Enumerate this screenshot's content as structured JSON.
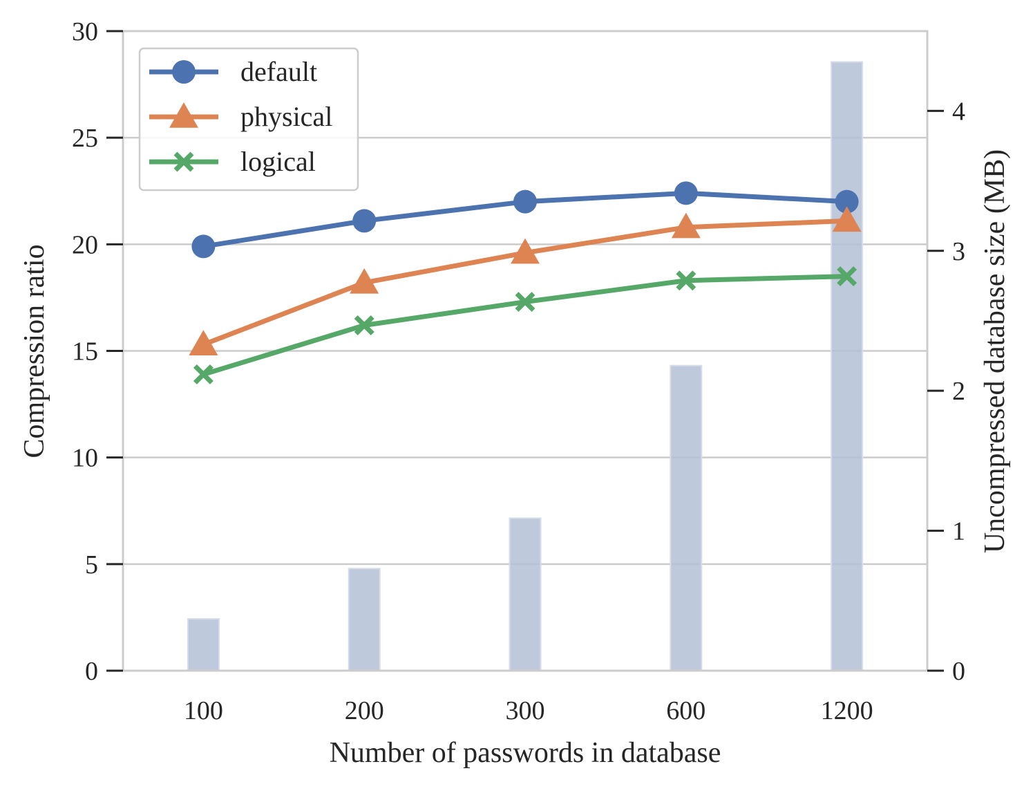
{
  "chart_data": {
    "type": "line",
    "categories": [
      "100",
      "200",
      "300",
      "600",
      "1200"
    ],
    "xlabel": "Number of passwords in database",
    "ylabel": "Compression ratio",
    "ylim": [
      0,
      30
    ],
    "yticks": [
      0,
      5,
      10,
      15,
      20,
      25,
      30
    ],
    "y2label": "Uncompressed database size (MB)",
    "y2lim": [
      0,
      4.57
    ],
    "y2ticks": [
      0,
      1,
      2,
      3,
      4
    ],
    "grid": true,
    "legend_position": "top-left",
    "series": [
      {
        "name": "default",
        "marker": "circle",
        "color": "#4c72b0",
        "values": [
          19.9,
          21.1,
          22.0,
          22.4,
          22.0
        ]
      },
      {
        "name": "physical",
        "marker": "triangle",
        "color": "#dd8452",
        "values": [
          15.3,
          18.2,
          19.6,
          20.8,
          21.1
        ]
      },
      {
        "name": "logical",
        "marker": "x",
        "color": "#55a868",
        "values": [
          13.9,
          16.2,
          17.3,
          18.3,
          18.5
        ]
      }
    ],
    "bars": {
      "axis": "right",
      "color": "#b3c0d6",
      "values": [
        0.37,
        0.73,
        1.09,
        2.18,
        4.35
      ]
    }
  }
}
